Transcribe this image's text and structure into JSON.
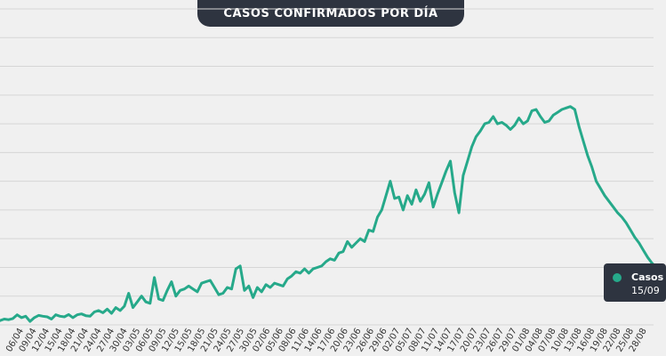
{
  "title": "CASOS CONFIRMADOS POR DÍA",
  "tooltip": {
    "series": "Casos",
    "date": "15/09"
  },
  "colors": {
    "line": "#26a98a",
    "grid": "#d6d6d6",
    "pill": "#2e3440",
    "background": "#f0f0f0"
  },
  "chart_data": {
    "type": "line",
    "title": "CASOS CONFIRMADOS POR DÍA",
    "xlabel": "",
    "ylabel": "",
    "ylim": [
      0,
      11
    ],
    "grid": true,
    "x_tick_labels": [
      "06/04",
      "09/04",
      "12/04",
      "15/04",
      "18/04",
      "21/04",
      "24/04",
      "27/04",
      "30/04",
      "03/05",
      "06/05",
      "09/05",
      "12/05",
      "15/05",
      "18/05",
      "21/05",
      "24/05",
      "27/05",
      "30/05",
      "02/06",
      "05/06",
      "08/06",
      "11/06",
      "14/06",
      "17/06",
      "20/06",
      "23/06",
      "26/06",
      "29/06",
      "02/07",
      "05/07",
      "08/07",
      "11/07",
      "14/07",
      "17/07",
      "20/07",
      "23/07",
      "26/07",
      "29/07",
      "01/08",
      "04/08",
      "07/08",
      "10/08",
      "13/08",
      "16/08",
      "19/08",
      "22/08",
      "25/08",
      "28/08"
    ],
    "values": [
      0.15,
      0.2,
      0.18,
      0.22,
      0.35,
      0.25,
      0.3,
      0.12,
      0.25,
      0.33,
      0.3,
      0.28,
      0.2,
      0.35,
      0.3,
      0.28,
      0.36,
      0.25,
      0.35,
      0.38,
      0.32,
      0.3,
      0.45,
      0.5,
      0.42,
      0.55,
      0.4,
      0.6,
      0.5,
      0.65,
      1.1,
      0.6,
      0.8,
      1.0,
      0.8,
      0.75,
      1.65,
      0.9,
      0.85,
      1.2,
      1.5,
      1.0,
      1.2,
      1.25,
      1.35,
      1.25,
      1.15,
      1.45,
      1.5,
      1.55,
      1.3,
      1.05,
      1.1,
      1.3,
      1.25,
      1.95,
      2.05,
      1.2,
      1.35,
      0.95,
      1.3,
      1.15,
      1.4,
      1.3,
      1.45,
      1.4,
      1.35,
      1.6,
      1.7,
      1.85,
      1.8,
      1.95,
      1.8,
      1.95,
      2.0,
      2.05,
      2.2,
      2.3,
      2.25,
      2.5,
      2.55,
      2.9,
      2.7,
      2.85,
      3.0,
      2.9,
      3.3,
      3.25,
      3.75,
      4.0,
      4.5,
      5.0,
      4.4,
      4.45,
      4.0,
      4.5,
      4.2,
      4.7,
      4.3,
      4.55,
      4.95,
      4.1,
      4.55,
      4.95,
      5.35,
      5.7,
      4.6,
      3.9,
      5.2,
      5.7,
      6.2,
      6.55,
      6.75,
      7.0,
      7.05,
      7.25,
      7.0,
      7.05,
      6.95,
      6.8,
      6.95,
      7.2,
      7.0,
      7.1,
      7.45,
      7.5,
      7.25,
      7.05,
      7.1,
      7.3,
      7.4,
      7.5,
      7.55,
      7.6,
      7.5,
      6.9,
      6.4,
      5.9,
      5.5,
      5.0,
      4.75,
      4.5,
      4.3,
      4.1,
      3.9,
      3.75,
      3.55,
      3.3,
      3.05,
      2.85,
      2.6,
      2.35,
      2.15,
      2.0
    ]
  }
}
